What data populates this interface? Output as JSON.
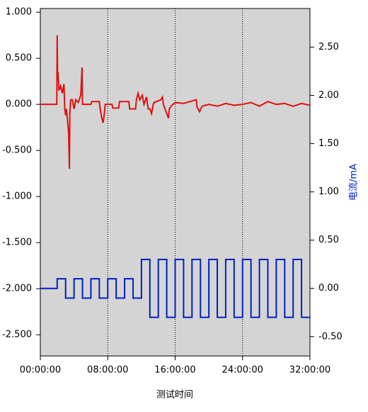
{
  "chart_data": {
    "type": "line",
    "x_label": "测试时间",
    "y2_label": "电流/mA",
    "xlim": [
      0,
      32
    ],
    "xticks": [
      {
        "value": 0,
        "label": "00:00:00"
      },
      {
        "value": 8,
        "label": "08:00:00"
      },
      {
        "value": 16,
        "label": "16:00:00"
      },
      {
        "value": 24,
        "label": "24:00:00"
      },
      {
        "value": 32,
        "label": "32:00:00"
      }
    ],
    "ylim": [
      -2.73,
      1.04
    ],
    "yticks": [
      {
        "value": 1,
        "label": "1.000"
      },
      {
        "value": 0.5,
        "label": "0.500"
      },
      {
        "value": 0,
        "label": "0.000"
      },
      {
        "value": -0.5,
        "label": "-0.500"
      },
      {
        "value": -1,
        "label": "-1.000"
      },
      {
        "value": -1.5,
        "label": "-1.500"
      },
      {
        "value": -2,
        "label": "-2.000"
      },
      {
        "value": -2.5,
        "label": "-2.500"
      }
    ],
    "y2lim": [
      -0.7,
      2.9
    ],
    "y2ticks": [
      {
        "value": 2.5,
        "label": "2.50"
      },
      {
        "value": 2,
        "label": "2.00"
      },
      {
        "value": 1.5,
        "label": "1.50"
      },
      {
        "value": 1,
        "label": "1.00"
      },
      {
        "value": 0.5,
        "label": "0.50"
      },
      {
        "value": 0,
        "label": "0.00"
      },
      {
        "value": -0.5,
        "label": "-0.50"
      }
    ],
    "grid": true,
    "series": [
      {
        "color": "#e01010",
        "x": [
          0,
          1.95,
          2.0,
          2.05,
          2.1,
          2.2,
          2.4,
          2.6,
          2.8,
          2.9,
          3.0,
          3.1,
          3.2,
          3.35,
          3.45,
          3.5,
          3.6,
          3.8,
          4.0,
          4.2,
          4.5,
          4.8,
          4.95,
          5.0,
          6.0,
          6.1,
          7.0,
          7.1,
          7.3,
          7.45,
          7.6,
          7.7,
          8.5,
          8.6,
          9.3,
          9.4,
          10.5,
          10.6,
          11.3,
          11.4,
          11.6,
          11.8,
          12.1,
          12.3,
          12.6,
          12.8,
          13.0,
          13.2,
          13.4,
          13.5,
          14.3,
          14.5,
          14.6,
          14.8,
          15.0,
          15.2,
          15.3,
          15.5,
          16.0,
          17.0,
          18.5,
          18.6,
          18.9,
          19.2,
          20,
          21,
          22,
          23,
          24,
          25,
          26,
          27,
          28,
          29,
          30,
          31,
          32
        ],
        "values": [
          0,
          0,
          0.75,
          0.3,
          0.35,
          0.15,
          0.2,
          0.12,
          0.22,
          -0.05,
          -0.12,
          -0.05,
          -0.15,
          -0.3,
          -0.7,
          -0.1,
          0.05,
          0.05,
          -0.05,
          0.05,
          0.02,
          0.1,
          0.4,
          0.0,
          0.0,
          0.03,
          0.03,
          -0.05,
          -0.15,
          -0.2,
          -0.1,
          0.0,
          0.0,
          -0.04,
          -0.04,
          0.03,
          0.03,
          -0.05,
          -0.05,
          0.05,
          0.12,
          0.05,
          0.1,
          0.0,
          0.08,
          -0.05,
          -0.05,
          -0.1,
          0.0,
          0.02,
          0.05,
          0.08,
          0.0,
          -0.05,
          -0.1,
          -0.15,
          -0.05,
          -0.02,
          0.02,
          0.01,
          0.05,
          -0.03,
          -0.08,
          -0.02,
          0.0,
          -0.02,
          0.01,
          -0.01,
          0.0,
          0.02,
          -0.02,
          0.03,
          0.0,
          0.01,
          -0.02,
          0.01,
          -0.01
        ]
      },
      {
        "color": "#0020c0",
        "axis": "y2",
        "x": [
          0,
          2,
          2,
          3,
          3,
          4,
          4,
          5,
          5,
          6,
          6,
          7,
          7,
          8,
          8,
          9,
          9,
          10,
          10,
          11,
          11,
          12,
          12,
          13,
          13,
          14,
          14,
          15,
          15,
          16,
          16,
          17,
          17,
          18,
          18,
          19,
          19,
          20,
          20,
          21,
          21,
          22,
          22,
          23,
          23,
          24,
          24,
          25,
          25,
          26,
          26,
          27,
          27,
          28,
          28,
          29,
          29,
          30,
          30,
          31,
          31,
          32
        ],
        "values": [
          0,
          0,
          0.1,
          0.1,
          -0.1,
          -0.1,
          0.1,
          0.1,
          -0.1,
          -0.1,
          0.1,
          0.1,
          -0.1,
          -0.1,
          0.1,
          0.1,
          -0.1,
          -0.1,
          0.1,
          0.1,
          -0.1,
          -0.1,
          0.3,
          0.3,
          -0.3,
          -0.3,
          0.3,
          0.3,
          -0.3,
          -0.3,
          0.3,
          0.3,
          -0.3,
          -0.3,
          0.3,
          0.3,
          -0.3,
          -0.3,
          0.3,
          0.3,
          -0.3,
          -0.3,
          0.3,
          0.3,
          -0.3,
          -0.3,
          0.3,
          0.3,
          -0.3,
          -0.3,
          0.3,
          0.3,
          -0.3,
          -0.3,
          0.3,
          0.3,
          -0.3,
          -0.3,
          0.3,
          0.3,
          -0.3,
          -0.3
        ]
      }
    ]
  }
}
